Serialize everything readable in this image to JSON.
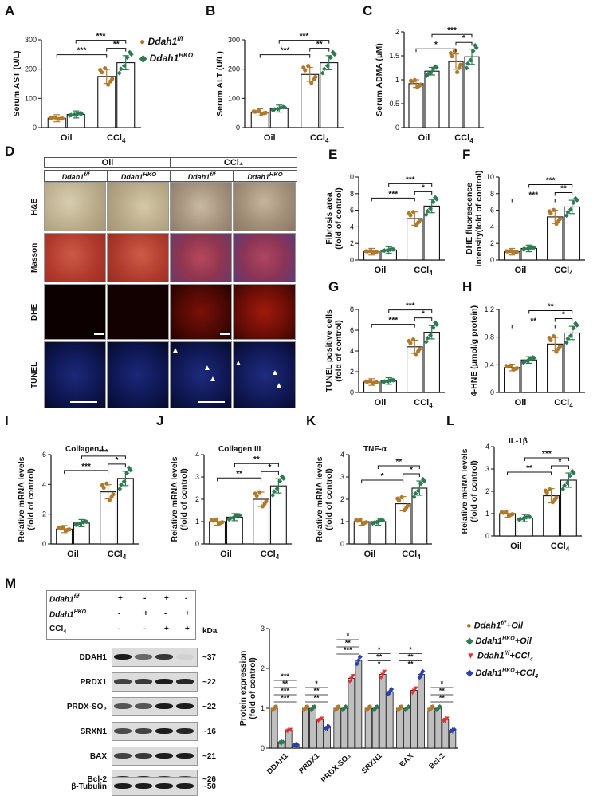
{
  "panel_labels": [
    "A",
    "B",
    "C",
    "D",
    "E",
    "F",
    "G",
    "H",
    "I",
    "J",
    "K",
    "L",
    "M"
  ],
  "legend_top": {
    "items": [
      {
        "label": "Ddah1",
        "sup": "f/f",
        "color": "#b07a2e"
      },
      {
        "label": "Ddah1",
        "sup": "HKO",
        "color": "#2e7a52"
      }
    ]
  },
  "colors": {
    "ff": "#b07a2e",
    "hko": "#2e7a52",
    "red": "#e53030",
    "blue": "#2a3fb0",
    "bar_gray": "#bfbfbf"
  },
  "common_x": [
    "Oil",
    "CCl4"
  ],
  "histo": {
    "group_headers": [
      "Oil",
      "CCl₄"
    ],
    "col_headers": [
      "Ddah1f/f",
      "Ddah1HKO",
      "Ddah1f/f",
      "Ddah1HKO"
    ],
    "row_labels": [
      "H&E",
      "Masson",
      "DHE",
      "TUNEL"
    ]
  },
  "blot": {
    "header_rows": [
      {
        "label": "Ddah1f/f",
        "signs": [
          "+",
          "-",
          "+",
          "-"
        ]
      },
      {
        "label": "Ddah1HKO",
        "signs": [
          "-",
          "+",
          "-",
          "+"
        ]
      },
      {
        "label": "CCl4",
        "signs": [
          "-",
          "-",
          "+",
          "+"
        ]
      }
    ],
    "kda_label": "kDa",
    "rows": [
      {
        "name": "DDAH1",
        "kda": "~37"
      },
      {
        "name": "PRDX1",
        "kda": "~22"
      },
      {
        "name": "PRDX-SO₃",
        "kda": "~22"
      },
      {
        "name": "SRXN1",
        "kda": "~16"
      },
      {
        "name": "BAX",
        "kda": "~21"
      },
      {
        "name": "Bcl-2",
        "kda": "~26"
      },
      {
        "name": "β-Tubulin",
        "kda": "~50"
      }
    ]
  },
  "legend_m": [
    {
      "label": "Ddah1f/f+Oil"
    },
    {
      "label": "Ddah1HKO+Oil"
    },
    {
      "label": "Ddah1f/f+CCl4"
    },
    {
      "label": "Ddah1HKO+CCl4"
    }
  ],
  "chart_data": [
    {
      "id": "A",
      "type": "bar",
      "ylabel": "Serum AST (U/L)",
      "ylim": [
        0,
        300
      ],
      "yticks": [
        0,
        100,
        200,
        300
      ],
      "categories": [
        "Oil",
        "CCl4"
      ],
      "series": [
        {
          "name": "Ddah1f/f",
          "values": [
            32,
            175
          ]
        },
        {
          "name": "Ddah1HKO",
          "values": [
            45,
            222
          ]
        }
      ],
      "sig": [
        "***",
        "***",
        "**"
      ]
    },
    {
      "id": "B",
      "type": "bar",
      "ylabel": "Serum ALT (U/L)",
      "ylim": [
        0,
        300
      ],
      "yticks": [
        0,
        100,
        200,
        300
      ],
      "categories": [
        "Oil",
        "CCl4"
      ],
      "series": [
        {
          "name": "Ddah1f/f",
          "values": [
            52,
            182
          ]
        },
        {
          "name": "Ddah1HKO",
          "values": [
            65,
            222
          ]
        }
      ],
      "sig": [
        "***",
        "***",
        "**"
      ]
    },
    {
      "id": "C",
      "type": "bar",
      "ylabel": "Serum ADMA (μM)",
      "ylim": [
        0,
        2.0
      ],
      "yticks": [
        0,
        0.5,
        1.0,
        1.5,
        2.0
      ],
      "categories": [
        "Oil",
        "CCl4"
      ],
      "series": [
        {
          "name": "Ddah1f/f",
          "values": [
            0.92,
            1.38
          ]
        },
        {
          "name": "Ddah1HKO",
          "values": [
            1.18,
            1.48
          ]
        }
      ],
      "sig": [
        "*",
        "***",
        "*"
      ]
    },
    {
      "id": "E",
      "type": "bar",
      "ylabel": "Fibrosis area\n(fold of control)",
      "ylim": [
        0,
        10
      ],
      "yticks": [
        0,
        2,
        4,
        6,
        8,
        10
      ],
      "categories": [
        "Oil",
        "CCl4"
      ],
      "series": [
        {
          "name": "Ddah1f/f",
          "values": [
            1.0,
            5.0
          ]
        },
        {
          "name": "Ddah1HKO",
          "values": [
            1.2,
            6.5
          ]
        }
      ],
      "sig": [
        "***",
        "***",
        "*"
      ]
    },
    {
      "id": "F",
      "type": "bar",
      "ylabel": "DHE fluorescence\nintensity(fold of control)",
      "ylim": [
        0,
        10
      ],
      "yticks": [
        0,
        2,
        4,
        6,
        8,
        10
      ],
      "categories": [
        "Oil",
        "CCl4"
      ],
      "series": [
        {
          "name": "Ddah1f/f",
          "values": [
            1.0,
            5.2
          ]
        },
        {
          "name": "Ddah1HKO",
          "values": [
            1.4,
            6.4
          ]
        }
      ],
      "sig": [
        "***",
        "***",
        "**"
      ]
    },
    {
      "id": "G",
      "type": "bar",
      "ylabel": "TUNEL positive cells\n(fold of control)",
      "ylim": [
        0,
        8
      ],
      "yticks": [
        0,
        2,
        4,
        6,
        8
      ],
      "categories": [
        "Oil",
        "CCl4"
      ],
      "series": [
        {
          "name": "Ddah1f/f",
          "values": [
            1.0,
            4.4
          ]
        },
        {
          "name": "Ddah1HKO",
          "values": [
            1.1,
            5.8
          ]
        }
      ],
      "sig": [
        "***",
        "***",
        "*"
      ]
    },
    {
      "id": "H",
      "type": "bar",
      "ylabel": "4-HNE (μmol/g protein)",
      "ylim": [
        0,
        1.2
      ],
      "yticks": [
        0,
        0.4,
        0.8,
        1.2
      ],
      "categories": [
        "Oil",
        "CCl4"
      ],
      "series": [
        {
          "name": "Ddah1f/f",
          "values": [
            0.36,
            0.7
          ]
        },
        {
          "name": "Ddah1HKO",
          "values": [
            0.47,
            0.86
          ]
        }
      ],
      "sig": [
        "**",
        "**",
        "*"
      ]
    },
    {
      "id": "I",
      "type": "bar",
      "title": "Collagen I",
      "ylabel": "Relative mRNA levels\n(fold of control)",
      "ylim": [
        0,
        6
      ],
      "yticks": [
        0,
        2,
        4,
        6
      ],
      "categories": [
        "Oil",
        "CCl4"
      ],
      "series": [
        {
          "name": "Ddah1f/f",
          "values": [
            1.0,
            3.5
          ]
        },
        {
          "name": "Ddah1HKO",
          "values": [
            1.4,
            4.4
          ]
        }
      ],
      "sig": [
        "***",
        "***",
        "*"
      ]
    },
    {
      "id": "J",
      "type": "bar",
      "title": "Collagen III",
      "ylabel": "Relative mRNA levels\n(fold of control)",
      "ylim": [
        0,
        4
      ],
      "yticks": [
        0,
        1,
        2,
        3,
        4
      ],
      "categories": [
        "Oil",
        "CCl4"
      ],
      "series": [
        {
          "name": "Ddah1f/f",
          "values": [
            1.0,
            2.0
          ]
        },
        {
          "name": "Ddah1HKO",
          "values": [
            1.2,
            2.6
          ]
        }
      ],
      "sig": [
        "**",
        "**",
        "*"
      ]
    },
    {
      "id": "K",
      "type": "bar",
      "title": "TNF-α",
      "ylabel": "Relative mRNA levels\n(fold of control)",
      "ylim": [
        0,
        4
      ],
      "yticks": [
        0,
        1,
        2,
        3,
        4
      ],
      "categories": [
        "Oil",
        "CCl4"
      ],
      "series": [
        {
          "name": "Ddah1f/f",
          "values": [
            1.0,
            1.8
          ]
        },
        {
          "name": "Ddah1HKO",
          "values": [
            1.0,
            2.5
          ]
        }
      ],
      "sig": [
        "*",
        "**",
        "*"
      ]
    },
    {
      "id": "L",
      "type": "bar",
      "title": "IL-1β",
      "ylabel": "Relative mRNA levels\n(fold of control)",
      "ylim": [
        0,
        4
      ],
      "yticks": [
        0,
        1,
        2,
        3,
        4
      ],
      "categories": [
        "Oil",
        "CCl4"
      ],
      "series": [
        {
          "name": "Ddah1f/f",
          "values": [
            1.0,
            1.8
          ]
        },
        {
          "name": "Ddah1HKO",
          "values": [
            0.8,
            2.5
          ]
        }
      ],
      "sig": [
        "**",
        "***",
        "*"
      ]
    },
    {
      "id": "M",
      "type": "bar",
      "ylabel": "Protein expression\n(fold of control)",
      "ylim": [
        0,
        3
      ],
      "yticks": [
        0,
        1,
        2,
        3
      ],
      "categories": [
        "DDAH1",
        "PRDX1",
        "PRDX-SO₃",
        "SRXN1",
        "BAX",
        "Bcl-2"
      ],
      "series": [
        {
          "name": "Ddah1f/f+Oil",
          "values": [
            1.0,
            1.0,
            1.0,
            1.0,
            1.0,
            1.0
          ]
        },
        {
          "name": "Ddah1HKO+Oil",
          "values": [
            0.15,
            1.0,
            1.0,
            1.0,
            1.0,
            1.0
          ]
        },
        {
          "name": "Ddah1f/f+CCl4",
          "values": [
            0.45,
            0.72,
            1.75,
            1.85,
            1.45,
            0.72
          ]
        },
        {
          "name": "Ddah1HKO+CCl4",
          "values": [
            0.08,
            0.52,
            2.2,
            1.42,
            1.85,
            0.45
          ]
        }
      ],
      "sig": [
        [
          "***",
          "***",
          "**",
          "***"
        ],
        [
          "**",
          "**",
          "*"
        ],
        [
          "***",
          "**",
          "*"
        ],
        [
          "*",
          "**",
          "*"
        ],
        [
          "**",
          "**",
          "*"
        ],
        [
          "**",
          "**",
          "*"
        ]
      ]
    }
  ]
}
